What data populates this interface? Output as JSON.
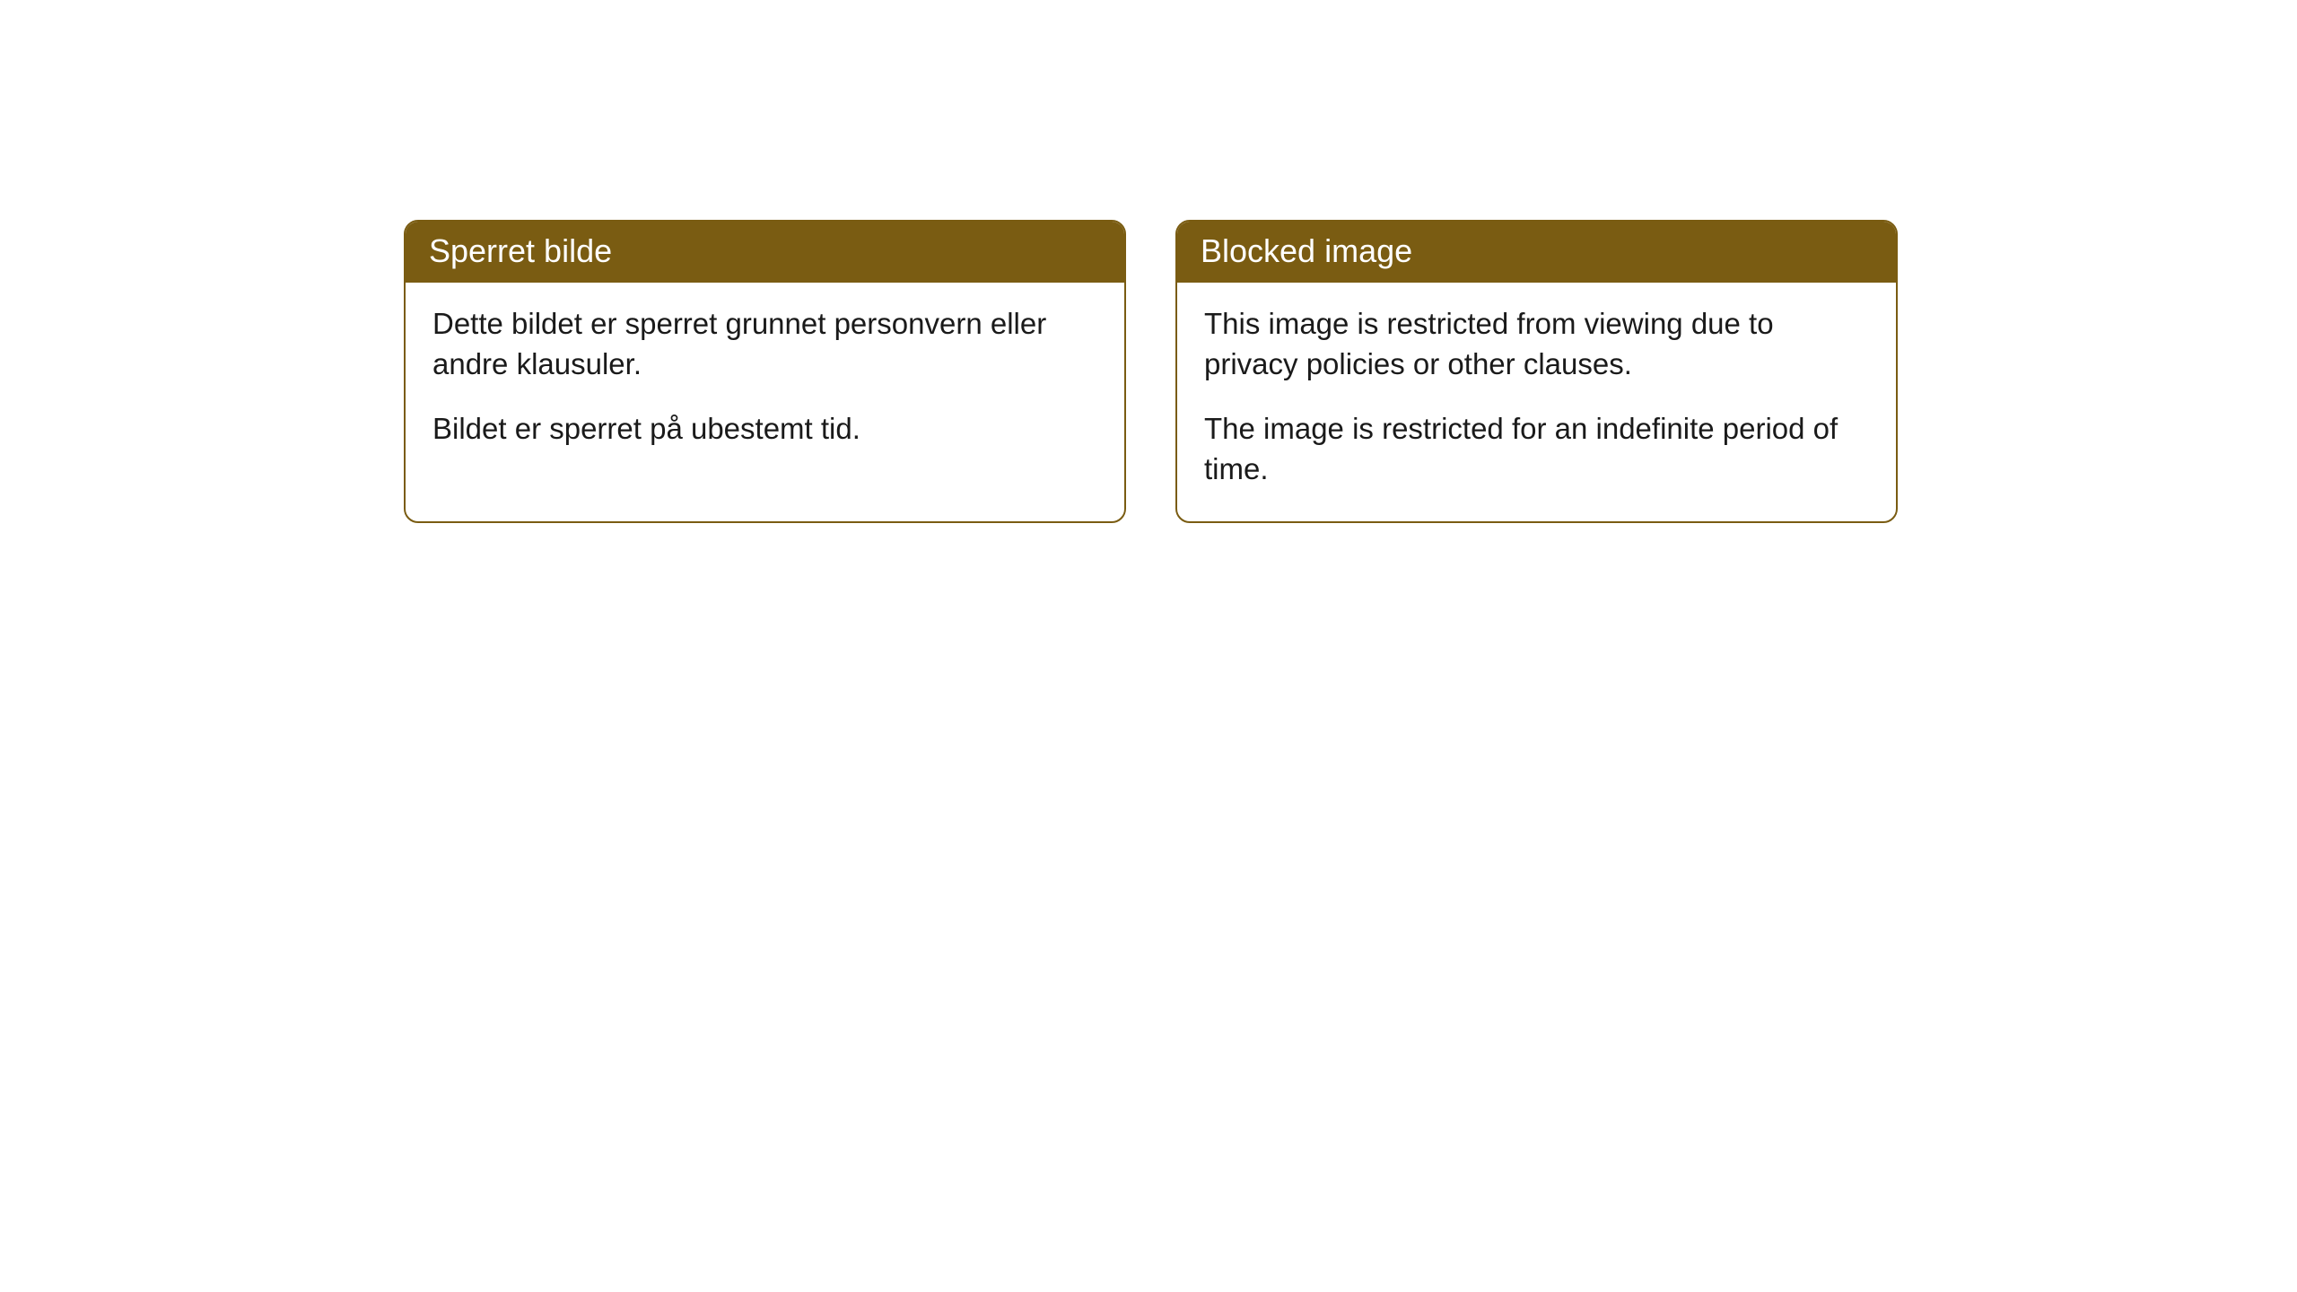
{
  "cards": [
    {
      "title": "Sperret bilde",
      "paragraph1": "Dette bildet er sperret grunnet personvern eller andre klausuler.",
      "paragraph2": "Bildet er sperret på ubestemt tid."
    },
    {
      "title": "Blocked image",
      "paragraph1": "This image is restricted from viewing due to privacy policies or other clauses.",
      "paragraph2": "The image is restricted for an indefinite period of time."
    }
  ],
  "styles": {
    "header_bg": "#7a5c12",
    "border_color": "#7a5c12",
    "header_text_color": "#ffffff",
    "body_text_color": "#1a1a1a",
    "body_bg": "#ffffff",
    "border_radius": 16,
    "title_fontsize": 36,
    "body_fontsize": 33
  }
}
